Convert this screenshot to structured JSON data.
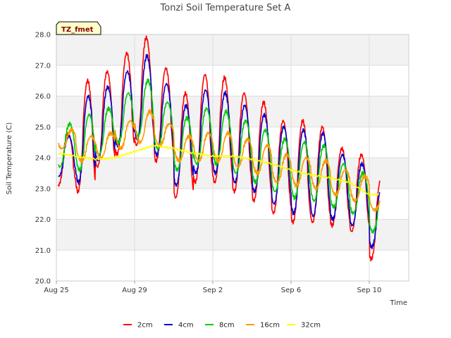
{
  "chart_data": {
    "type": "line",
    "title": "Tonzi Soil Temperature Set A",
    "xlabel": "Time",
    "ylabel": "Soil Temperature (C)",
    "ylim": [
      20.0,
      28.0
    ],
    "xlim_days_from_aug25": [
      0,
      17
    ],
    "y_ticks": [
      "20.0",
      "21.0",
      "22.0",
      "23.0",
      "24.0",
      "25.0",
      "26.0",
      "27.0",
      "28.0"
    ],
    "x_ticks": [
      {
        "label": "Aug 25",
        "day": 0
      },
      {
        "label": "Aug 29",
        "day": 4
      },
      {
        "label": "Sep 2",
        "day": 8
      },
      {
        "label": "Sep 6",
        "day": 12
      },
      {
        "label": "Sep 10",
        "day": 16
      }
    ],
    "site_label": "TZ_fmet",
    "grid": true,
    "legend_position": "bottom",
    "series": [
      {
        "name": "2cm",
        "color": "#ff0000",
        "daily_max": [
          24.8,
          26.5,
          26.8,
          27.4,
          27.9,
          26.9,
          26.1,
          26.7,
          26.6,
          26.1,
          25.8,
          25.2,
          25.2,
          25.0,
          24.3,
          24.1,
          23.3
        ],
        "daily_min": [
          23.1,
          22.9,
          23.7,
          24.1,
          24.4,
          23.9,
          22.7,
          23.2,
          23.2,
          22.9,
          22.6,
          22.2,
          21.9,
          21.9,
          21.8,
          21.6,
          20.7
        ]
      },
      {
        "name": "4cm",
        "color": "#0000cc",
        "daily_max": [
          24.7,
          26.0,
          26.3,
          26.8,
          27.3,
          26.4,
          25.7,
          26.2,
          26.1,
          25.7,
          25.4,
          25.0,
          24.9,
          24.8,
          24.1,
          23.8,
          23.0
        ],
        "daily_min": [
          23.4,
          23.2,
          23.9,
          24.4,
          24.6,
          24.1,
          23.1,
          23.5,
          23.5,
          23.2,
          22.9,
          22.5,
          22.2,
          22.1,
          22.0,
          21.8,
          21.1
        ]
      },
      {
        "name": "8cm",
        "color": "#00cc00",
        "daily_max": [
          25.1,
          25.4,
          25.6,
          26.1,
          26.5,
          25.8,
          25.3,
          25.6,
          25.5,
          25.2,
          24.9,
          24.6,
          24.5,
          24.4,
          23.8,
          23.5,
          22.8
        ],
        "daily_min": [
          23.7,
          23.6,
          24.1,
          24.5,
          24.7,
          24.3,
          23.6,
          23.8,
          23.8,
          23.5,
          23.2,
          22.9,
          22.7,
          22.6,
          22.4,
          22.2,
          21.6
        ]
      },
      {
        "name": "16cm",
        "color": "#ff9900",
        "daily_max": [
          24.9,
          24.7,
          24.8,
          25.2,
          25.5,
          25.1,
          24.7,
          24.8,
          24.8,
          24.6,
          24.4,
          24.1,
          24.0,
          23.9,
          23.6,
          23.4,
          22.9
        ],
        "daily_min": [
          24.3,
          23.9,
          24.0,
          24.3,
          24.5,
          24.4,
          23.9,
          23.9,
          23.9,
          23.7,
          23.5,
          23.2,
          23.1,
          23.0,
          22.8,
          22.6,
          22.3
        ]
      },
      {
        "name": "32cm",
        "color": "#ffff00",
        "daily_mean": [
          24.15,
          24.05,
          23.95,
          24.0,
          24.2,
          24.4,
          24.3,
          24.15,
          24.05,
          24.05,
          23.95,
          23.8,
          23.6,
          23.45,
          23.35,
          23.2,
          22.8
        ]
      }
    ]
  }
}
